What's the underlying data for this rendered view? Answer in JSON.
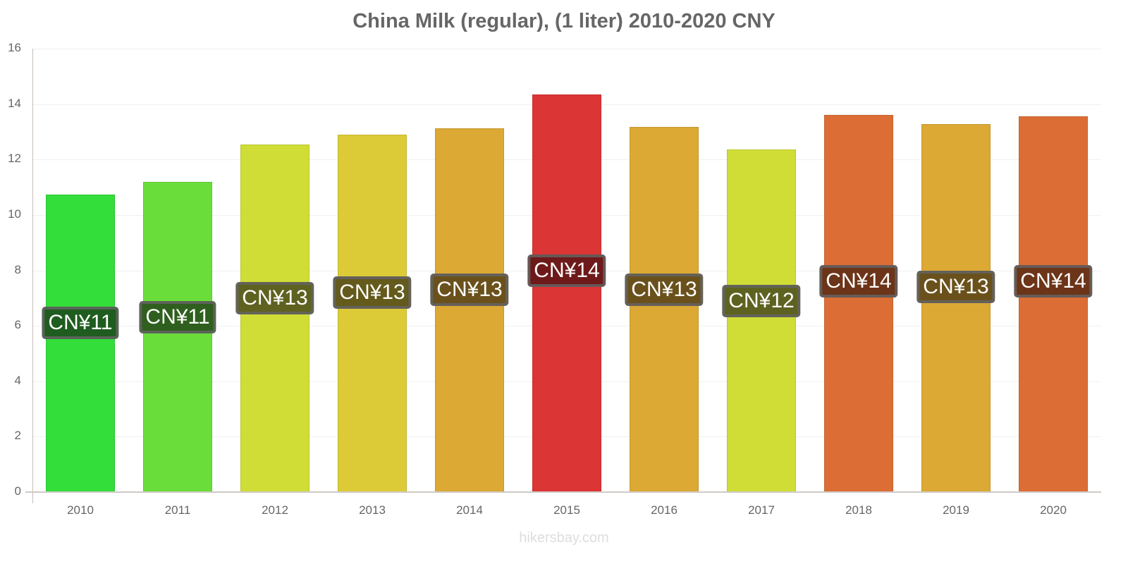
{
  "header": {
    "title": "China Milk (regular), (1 liter) 2010-2020 CNY"
  },
  "footer": {
    "watermark": "hikersbay.com"
  },
  "axis": {
    "y_ticks": [
      "0",
      "2",
      "4",
      "6",
      "8",
      "10",
      "12",
      "14",
      "16"
    ]
  },
  "bars": [
    {
      "year": "2010",
      "value": 10.73,
      "label": "CN¥11",
      "color": "#33dd3a",
      "label_bg": "#1f5c1f",
      "label_y": 6.1
    },
    {
      "year": "2011",
      "value": 11.19,
      "label": "CN¥11",
      "color": "#6add3a",
      "label_bg": "#2f5f1e",
      "label_y": 6.3
    },
    {
      "year": "2012",
      "value": 12.54,
      "label": "CN¥13",
      "color": "#cfdd36",
      "label_bg": "#5e6220",
      "label_y": 7.0
    },
    {
      "year": "2013",
      "value": 12.9,
      "label": "CN¥13",
      "color": "#dccb37",
      "label_bg": "#635a1c",
      "label_y": 7.2
    },
    {
      "year": "2014",
      "value": 13.13,
      "label": "CN¥13",
      "color": "#dca935",
      "label_bg": "#6a511c",
      "label_y": 7.3
    },
    {
      "year": "2015",
      "value": 14.35,
      "label": "CN¥14",
      "color": "#dc3535",
      "label_bg": "#6e1a1a",
      "label_y": 8.0
    },
    {
      "year": "2016",
      "value": 13.18,
      "label": "CN¥13",
      "color": "#dca935",
      "label_bg": "#6a511c",
      "label_y": 7.3
    },
    {
      "year": "2017",
      "value": 12.37,
      "label": "CN¥12",
      "color": "#cfdd36",
      "label_bg": "#5e6220",
      "label_y": 6.9
    },
    {
      "year": "2018",
      "value": 13.61,
      "label": "CN¥14",
      "color": "#dc6e35",
      "label_bg": "#6c3418",
      "label_y": 7.6
    },
    {
      "year": "2019",
      "value": 13.28,
      "label": "CN¥13",
      "color": "#dca935",
      "label_bg": "#6a511c",
      "label_y": 7.4
    },
    {
      "year": "2020",
      "value": 13.56,
      "label": "CN¥14",
      "color": "#dc6e35",
      "label_bg": "#6c3418",
      "label_y": 7.6
    }
  ],
  "chart_data": {
    "type": "bar",
    "title": "China Milk (regular), (1 liter) 2010-2020 CNY",
    "categories": [
      "2010",
      "2011",
      "2012",
      "2013",
      "2014",
      "2015",
      "2016",
      "2017",
      "2018",
      "2019",
      "2020"
    ],
    "values": [
      10.73,
      11.19,
      12.54,
      12.9,
      13.13,
      14.35,
      13.18,
      12.37,
      13.61,
      13.28,
      13.56
    ],
    "data_labels": [
      "CN¥11",
      "CN¥11",
      "CN¥13",
      "CN¥13",
      "CN¥13",
      "CN¥14",
      "CN¥13",
      "CN¥12",
      "CN¥14",
      "CN¥13",
      "CN¥14"
    ],
    "xlabel": "",
    "ylabel": "",
    "ylim": [
      0,
      16
    ],
    "y_ticks": [
      0,
      2,
      4,
      6,
      8,
      10,
      12,
      14,
      16
    ],
    "grid": true,
    "legend": "none"
  }
}
